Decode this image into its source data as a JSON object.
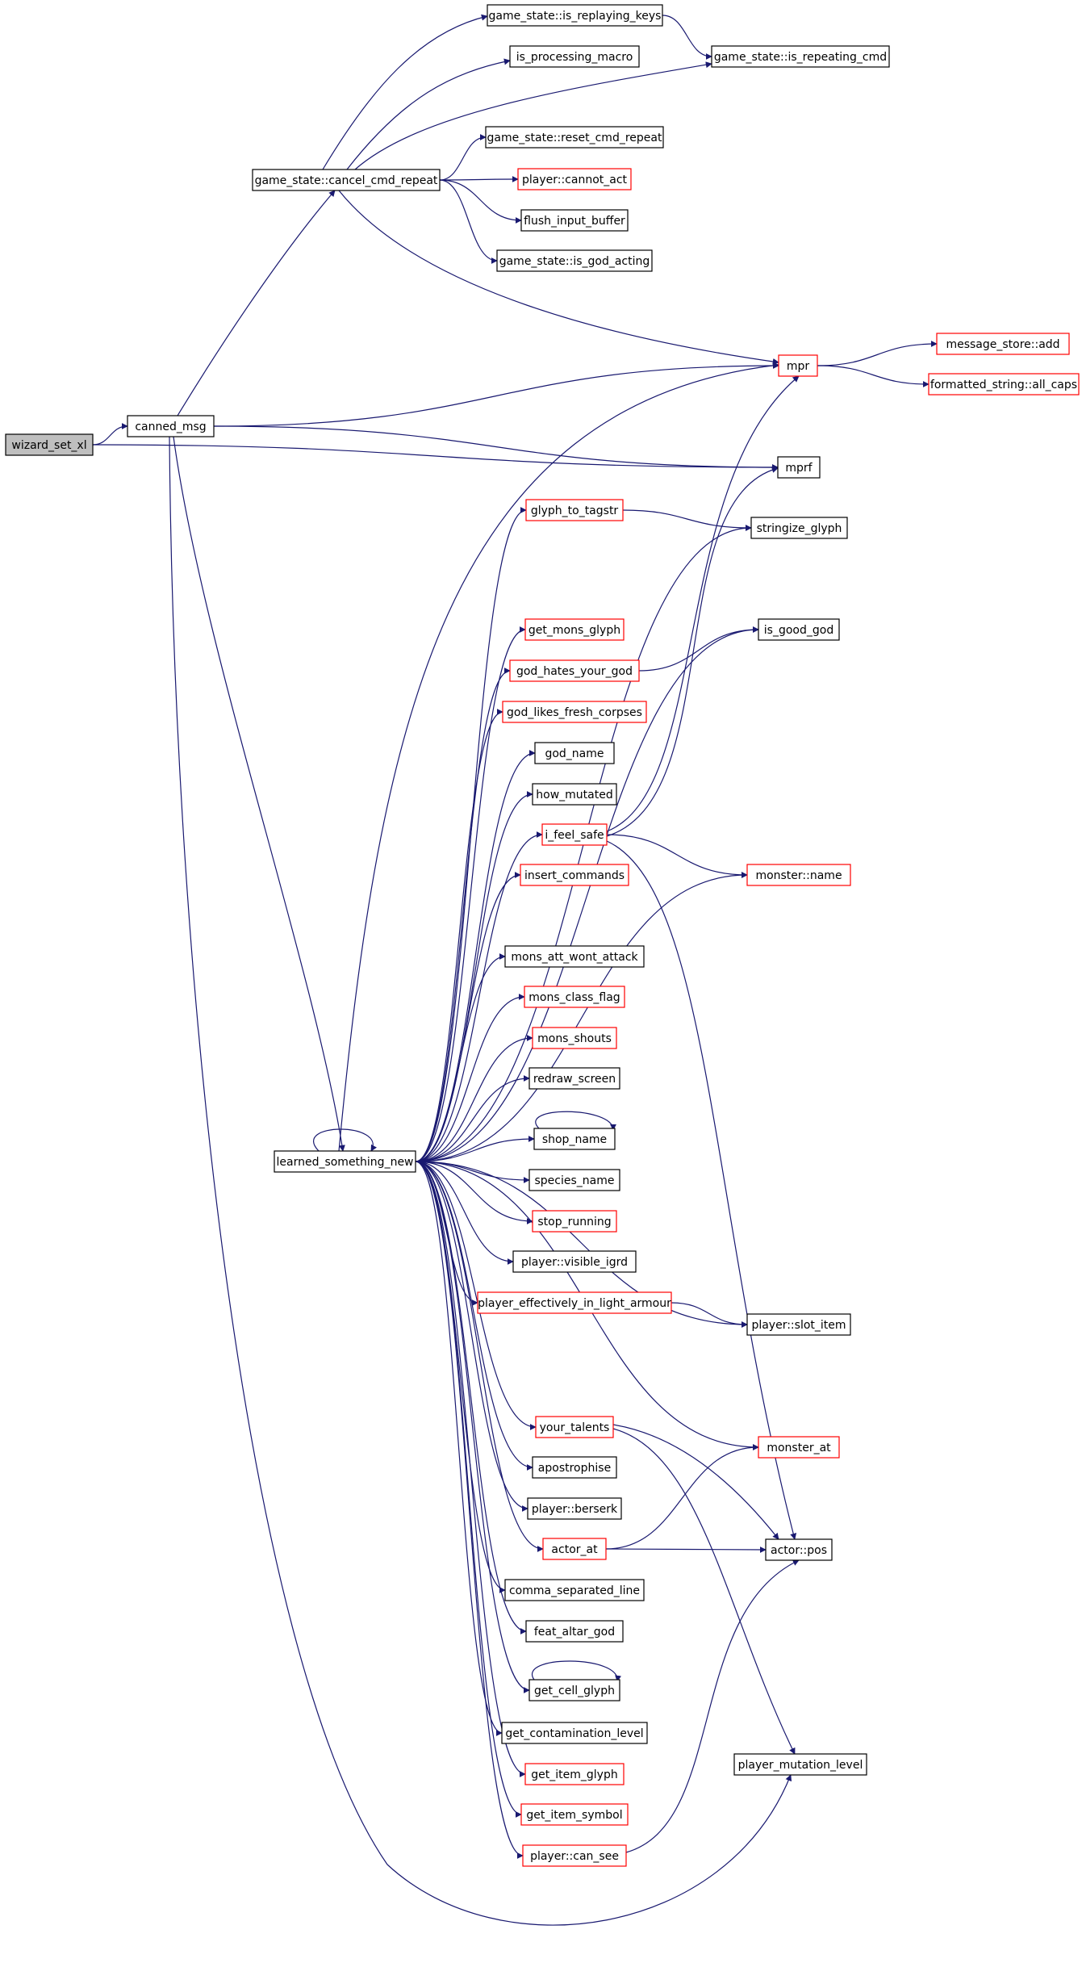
{
  "colors": {
    "edge": "#191970",
    "box": "#000000",
    "red_box": "#ff0000",
    "root_fill": "#bfbfbf",
    "background": "#ffffff"
  },
  "nodes": [
    {
      "id": "wizard_set_xl",
      "label": "wizard_set_xl",
      "style": "root"
    },
    {
      "id": "canned_msg",
      "label": "canned_msg",
      "style": "black"
    },
    {
      "id": "cancel_cmd_repeat",
      "label": "game_state::cancel_cmd_repeat",
      "style": "black"
    },
    {
      "id": "is_replaying_keys",
      "label": "game_state::is_replaying_keys",
      "style": "black"
    },
    {
      "id": "is_processing_macro",
      "label": "is_processing_macro",
      "style": "black"
    },
    {
      "id": "is_repeating_cmd",
      "label": "game_state::is_repeating_cmd",
      "style": "black"
    },
    {
      "id": "reset_cmd_repeat",
      "label": "game_state::reset_cmd_repeat",
      "style": "black"
    },
    {
      "id": "cannot_act",
      "label": "player::cannot_act",
      "style": "red"
    },
    {
      "id": "flush_input_buffer",
      "label": "flush_input_buffer",
      "style": "black"
    },
    {
      "id": "is_god_acting",
      "label": "game_state::is_god_acting",
      "style": "black"
    },
    {
      "id": "mpr",
      "label": "mpr",
      "style": "red"
    },
    {
      "id": "message_store_add",
      "label": "message_store::add",
      "style": "red"
    },
    {
      "id": "all_caps",
      "label": "formatted_string::all_caps",
      "style": "red"
    },
    {
      "id": "mprf",
      "label": "mprf",
      "style": "black"
    },
    {
      "id": "glyph_to_tagstr",
      "label": "glyph_to_tagstr",
      "style": "red"
    },
    {
      "id": "stringize_glyph",
      "label": "stringize_glyph",
      "style": "black"
    },
    {
      "id": "is_good_god",
      "label": "is_good_god",
      "style": "black"
    },
    {
      "id": "get_mons_glyph",
      "label": "get_mons_glyph",
      "style": "red"
    },
    {
      "id": "god_hates_your_god",
      "label": "god_hates_your_god",
      "style": "red"
    },
    {
      "id": "god_likes_fresh_corpses",
      "label": "god_likes_fresh_corpses",
      "style": "red"
    },
    {
      "id": "god_name",
      "label": "god_name",
      "style": "black"
    },
    {
      "id": "how_mutated",
      "label": "how_mutated",
      "style": "black"
    },
    {
      "id": "i_feel_safe",
      "label": "i_feel_safe",
      "style": "red"
    },
    {
      "id": "insert_commands",
      "label": "insert_commands",
      "style": "red"
    },
    {
      "id": "monster_name",
      "label": "monster::name",
      "style": "red"
    },
    {
      "id": "mons_att_wont_attack",
      "label": "mons_att_wont_attack",
      "style": "black"
    },
    {
      "id": "mons_class_flag",
      "label": "mons_class_flag",
      "style": "red"
    },
    {
      "id": "mons_shouts",
      "label": "mons_shouts",
      "style": "red"
    },
    {
      "id": "redraw_screen",
      "label": "redraw_screen",
      "style": "black"
    },
    {
      "id": "shop_name",
      "label": "shop_name",
      "style": "black"
    },
    {
      "id": "learned_something_new",
      "label": "learned_something_new",
      "style": "black"
    },
    {
      "id": "species_name",
      "label": "species_name",
      "style": "black"
    },
    {
      "id": "stop_running",
      "label": "stop_running",
      "style": "red"
    },
    {
      "id": "visible_igrd",
      "label": "player::visible_igrd",
      "style": "black"
    },
    {
      "id": "light_armour",
      "label": "player_effectively_in_light_armour",
      "style": "red"
    },
    {
      "id": "slot_item",
      "label": "player::slot_item",
      "style": "black"
    },
    {
      "id": "your_talents",
      "label": "your_talents",
      "style": "red"
    },
    {
      "id": "monster_at",
      "label": "monster_at",
      "style": "red"
    },
    {
      "id": "apostrophise",
      "label": "apostrophise",
      "style": "black"
    },
    {
      "id": "berserk",
      "label": "player::berserk",
      "style": "black"
    },
    {
      "id": "actor_at",
      "label": "actor_at",
      "style": "red"
    },
    {
      "id": "actor_pos",
      "label": "actor::pos",
      "style": "black"
    },
    {
      "id": "comma_separated_line",
      "label": "comma_separated_line",
      "style": "black"
    },
    {
      "id": "feat_altar_god",
      "label": "feat_altar_god",
      "style": "black"
    },
    {
      "id": "get_cell_glyph",
      "label": "get_cell_glyph",
      "style": "black"
    },
    {
      "id": "get_contamination_level",
      "label": "get_contamination_level",
      "style": "black"
    },
    {
      "id": "get_item_glyph",
      "label": "get_item_glyph",
      "style": "red"
    },
    {
      "id": "get_item_symbol",
      "label": "get_item_symbol",
      "style": "red"
    },
    {
      "id": "player_mutation_level",
      "label": "player_mutation_level",
      "style": "black"
    },
    {
      "id": "can_see",
      "label": "player::can_see",
      "style": "red"
    }
  ],
  "edges": [
    {
      "from": "wizard_set_xl",
      "to": "canned_msg"
    },
    {
      "from": "wizard_set_xl",
      "to": "mprf"
    },
    {
      "from": "canned_msg",
      "to": "cancel_cmd_repeat"
    },
    {
      "from": "canned_msg",
      "to": "mpr"
    },
    {
      "from": "canned_msg",
      "to": "mprf"
    },
    {
      "from": "canned_msg",
      "to": "learned_something_new"
    },
    {
      "from": "canned_msg",
      "to": "player_mutation_level"
    },
    {
      "from": "cancel_cmd_repeat",
      "to": "is_replaying_keys"
    },
    {
      "from": "cancel_cmd_repeat",
      "to": "is_processing_macro"
    },
    {
      "from": "cancel_cmd_repeat",
      "to": "is_repeating_cmd"
    },
    {
      "from": "cancel_cmd_repeat",
      "to": "reset_cmd_repeat"
    },
    {
      "from": "cancel_cmd_repeat",
      "to": "cannot_act"
    },
    {
      "from": "cancel_cmd_repeat",
      "to": "flush_input_buffer"
    },
    {
      "from": "cancel_cmd_repeat",
      "to": "is_god_acting"
    },
    {
      "from": "cancel_cmd_repeat",
      "to": "mpr"
    },
    {
      "from": "is_replaying_keys",
      "to": "is_repeating_cmd"
    },
    {
      "from": "mpr",
      "to": "message_store_add"
    },
    {
      "from": "mpr",
      "to": "all_caps"
    },
    {
      "from": "learned_something_new",
      "to": "mpr"
    },
    {
      "from": "learned_something_new",
      "to": "glyph_to_tagstr"
    },
    {
      "from": "learned_something_new",
      "to": "stringize_glyph"
    },
    {
      "from": "learned_something_new",
      "to": "is_good_god"
    },
    {
      "from": "learned_something_new",
      "to": "get_mons_glyph"
    },
    {
      "from": "learned_something_new",
      "to": "god_hates_your_god"
    },
    {
      "from": "learned_something_new",
      "to": "god_likes_fresh_corpses"
    },
    {
      "from": "learned_something_new",
      "to": "god_name"
    },
    {
      "from": "learned_something_new",
      "to": "how_mutated"
    },
    {
      "from": "learned_something_new",
      "to": "i_feel_safe"
    },
    {
      "from": "learned_something_new",
      "to": "insert_commands"
    },
    {
      "from": "learned_something_new",
      "to": "monster_name"
    },
    {
      "from": "learned_something_new",
      "to": "mons_att_wont_attack"
    },
    {
      "from": "learned_something_new",
      "to": "mons_class_flag"
    },
    {
      "from": "learned_something_new",
      "to": "mons_shouts"
    },
    {
      "from": "learned_something_new",
      "to": "redraw_screen"
    },
    {
      "from": "learned_something_new",
      "to": "shop_name"
    },
    {
      "from": "learned_something_new",
      "to": "species_name"
    },
    {
      "from": "learned_something_new",
      "to": "stop_running"
    },
    {
      "from": "learned_something_new",
      "to": "visible_igrd"
    },
    {
      "from": "learned_something_new",
      "to": "light_armour"
    },
    {
      "from": "learned_something_new",
      "to": "slot_item"
    },
    {
      "from": "learned_something_new",
      "to": "your_talents"
    },
    {
      "from": "learned_something_new",
      "to": "monster_at"
    },
    {
      "from": "learned_something_new",
      "to": "apostrophise"
    },
    {
      "from": "learned_something_new",
      "to": "berserk"
    },
    {
      "from": "learned_something_new",
      "to": "actor_at"
    },
    {
      "from": "learned_something_new",
      "to": "comma_separated_line"
    },
    {
      "from": "learned_something_new",
      "to": "feat_altar_god"
    },
    {
      "from": "learned_something_new",
      "to": "get_cell_glyph"
    },
    {
      "from": "learned_something_new",
      "to": "get_contamination_level"
    },
    {
      "from": "learned_something_new",
      "to": "get_item_glyph"
    },
    {
      "from": "learned_something_new",
      "to": "get_item_symbol"
    },
    {
      "from": "learned_something_new",
      "to": "can_see"
    },
    {
      "from": "learned_something_new",
      "to": "learned_something_new"
    },
    {
      "from": "glyph_to_tagstr",
      "to": "stringize_glyph"
    },
    {
      "from": "god_hates_your_god",
      "to": "is_good_god"
    },
    {
      "from": "i_feel_safe",
      "to": "mpr"
    },
    {
      "from": "i_feel_safe",
      "to": "mprf"
    },
    {
      "from": "i_feel_safe",
      "to": "monster_name"
    },
    {
      "from": "i_feel_safe",
      "to": "actor_pos"
    },
    {
      "from": "shop_name",
      "to": "shop_name"
    },
    {
      "from": "light_armour",
      "to": "slot_item"
    },
    {
      "from": "your_talents",
      "to": "actor_pos"
    },
    {
      "from": "your_talents",
      "to": "player_mutation_level"
    },
    {
      "from": "actor_at",
      "to": "monster_at"
    },
    {
      "from": "actor_at",
      "to": "actor_pos"
    },
    {
      "from": "get_cell_glyph",
      "to": "get_cell_glyph"
    },
    {
      "from": "can_see",
      "to": "actor_pos"
    }
  ]
}
